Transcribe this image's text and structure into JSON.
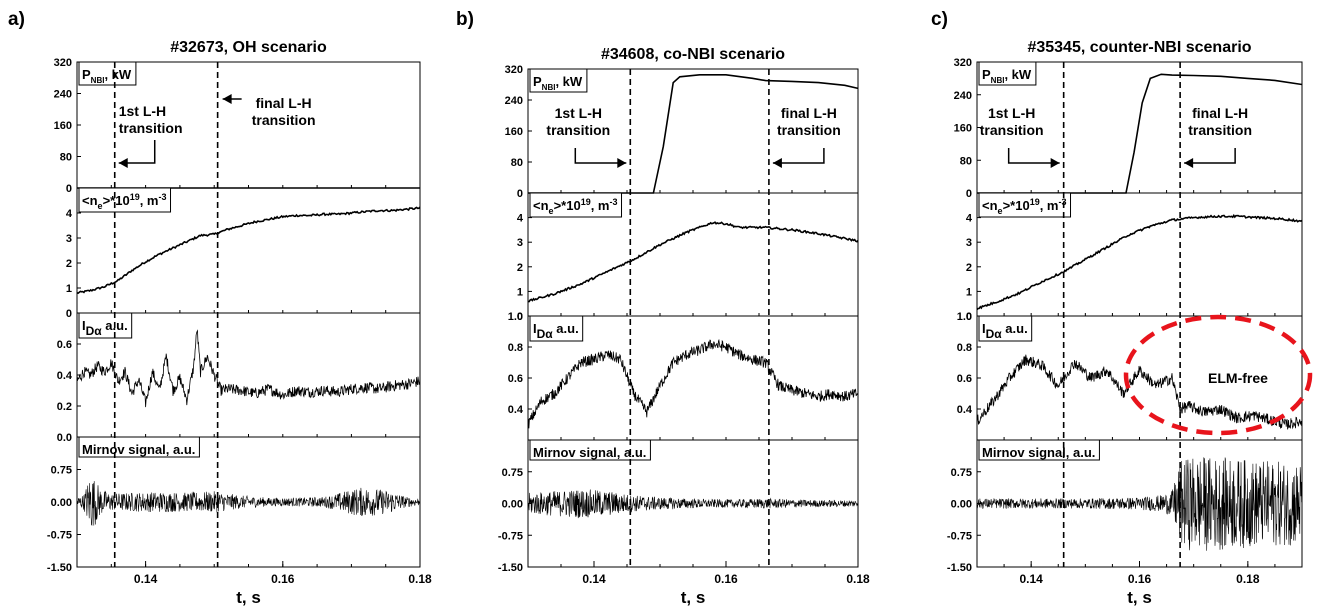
{
  "chart_data": [
    {
      "type": "line",
      "panel_label": "a)",
      "title": "#32673, OH scenario",
      "xlabel": "t, s",
      "xlim": [
        0.13,
        0.18
      ],
      "xticks": [
        "0.14",
        "0.16",
        "0.18"
      ],
      "transitions": [
        {
          "t": 0.1355,
          "label": "1st L-H transition",
          "lines": [
            "1st L-H",
            "transition"
          ],
          "arrow": "left"
        },
        {
          "t": 0.1505,
          "label": "final L-H transition",
          "lines": [
            "final L-H",
            "transition"
          ],
          "arrow": "left"
        }
      ],
      "subplots": [
        {
          "ylabel": "P_NBI, kW",
          "ylim": [
            0,
            320
          ],
          "yticks": [
            "0",
            "80",
            "160",
            "240",
            "320"
          ],
          "series": {
            "name": "P_NBI",
            "x": [
              0.13,
              0.18
            ],
            "y": [
              0,
              0
            ]
          }
        },
        {
          "ylabel": "<n_e>*10^19, m^-3",
          "ylim": [
            0,
            5
          ],
          "yticks": [
            "0",
            "1",
            "2",
            "3",
            "4"
          ],
          "series": {
            "name": "ne",
            "x": [
              0.13,
              0.132,
              0.134,
              0.136,
              0.138,
              0.14,
              0.142,
              0.144,
              0.146,
              0.148,
              0.15,
              0.152,
              0.154,
              0.156,
              0.158,
              0.16,
              0.162,
              0.164,
              0.166,
              0.168,
              0.17,
              0.172,
              0.174,
              0.176,
              0.178,
              0.18
            ],
            "y": [
              0.8,
              0.9,
              1.05,
              1.3,
              1.7,
              2.05,
              2.35,
              2.6,
              2.85,
              3.1,
              3.15,
              3.35,
              3.5,
              3.65,
              3.75,
              3.85,
              3.9,
              3.9,
              3.95,
              3.95,
              4.0,
              4.05,
              4.1,
              4.1,
              4.15,
              4.2
            ]
          }
        },
        {
          "ylabel": "I_Dα, a.u.",
          "ylim": [
            0,
            0.8
          ],
          "yticks": [
            "0.0",
            "0.2",
            "0.4",
            "0.6"
          ],
          "series": {
            "name": "Dalpha",
            "x": [
              0.13,
              0.131,
              0.132,
              0.133,
              0.134,
              0.135,
              0.136,
              0.137,
              0.138,
              0.139,
              0.14,
              0.141,
              0.142,
              0.143,
              0.144,
              0.145,
              0.146,
              0.147,
              0.1475,
              0.148,
              0.149,
              0.15,
              0.151,
              0.152,
              0.154,
              0.156,
              0.158,
              0.16,
              0.162,
              0.164,
              0.166,
              0.168,
              0.17,
              0.172,
              0.174,
              0.176,
              0.178,
              0.18
            ],
            "y": [
              0.36,
              0.42,
              0.4,
              0.46,
              0.42,
              0.48,
              0.36,
              0.42,
              0.28,
              0.37,
              0.22,
              0.42,
              0.3,
              0.52,
              0.3,
              0.38,
              0.24,
              0.45,
              0.7,
              0.42,
              0.52,
              0.4,
              0.3,
              0.31,
              0.3,
              0.28,
              0.31,
              0.27,
              0.3,
              0.29,
              0.3,
              0.29,
              0.31,
              0.32,
              0.31,
              0.33,
              0.34,
              0.36
            ]
          }
        },
        {
          "ylabel": "Mirnov signal, a.u.",
          "ylim": [
            -1.5,
            1.5
          ],
          "yticks": [
            "-1.50",
            "-0.75",
            "0.00",
            "0.75"
          ],
          "series": {
            "name": "Mirnov",
            "x": [
              0.13,
              0.131,
              0.132,
              0.1335,
              0.135,
              0.138,
              0.142,
              0.146,
              0.15,
              0.154,
              0.158,
              0.162,
              0.166,
              0.168,
              0.17,
              0.172,
              0.174,
              0.176,
              0.178,
              0.18
            ],
            "amplitude": [
              0.12,
              0.18,
              0.7,
              0.3,
              0.2,
              0.22,
              0.24,
              0.22,
              0.25,
              0.15,
              0.1,
              0.1,
              0.12,
              0.2,
              0.3,
              0.35,
              0.3,
              0.25,
              0.12,
              0.08
            ]
          }
        }
      ]
    },
    {
      "type": "line",
      "panel_label": "b)",
      "title": "#34608, co-NBI scenario",
      "xlabel": "t, s",
      "xlim": [
        0.13,
        0.18
      ],
      "xticks": [
        "0.14",
        "0.16",
        "0.18"
      ],
      "transitions": [
        {
          "t": 0.1455,
          "label": "1st L-H transition",
          "lines": [
            "1st L-H",
            "transition"
          ],
          "arrow": "right"
        },
        {
          "t": 0.1665,
          "label": "final L-H transition",
          "lines": [
            "final L-H",
            "transition"
          ],
          "arrow": "left"
        }
      ],
      "subplots": [
        {
          "ylabel": "P_NBI, kW",
          "ylim": [
            0,
            320
          ],
          "yticks": [
            "0",
            "80",
            "160",
            "240",
            "320"
          ],
          "series": {
            "name": "P_NBI",
            "x": [
              0.13,
              0.149,
              0.1505,
              0.152,
              0.153,
              0.156,
              0.16,
              0.164,
              0.166,
              0.17,
              0.174,
              0.178,
              0.18
            ],
            "y": [
              0,
              0,
              120,
              285,
              300,
              305,
              305,
              296,
              290,
              288,
              285,
              278,
              270
            ]
          }
        },
        {
          "ylabel": "<n_e>*10^19, m^-3",
          "ylim": [
            0,
            5
          ],
          "yticks": [
            "0",
            "1",
            "2",
            "3",
            "4"
          ],
          "series": {
            "name": "ne",
            "x": [
              0.13,
              0.134,
              0.138,
              0.142,
              0.146,
              0.15,
              0.154,
              0.158,
              0.16,
              0.162,
              0.166,
              0.17,
              0.174,
              0.178,
              0.18
            ],
            "y": [
              0.6,
              0.9,
              1.3,
              1.8,
              2.3,
              2.9,
              3.4,
              3.8,
              3.75,
              3.6,
              3.6,
              3.5,
              3.35,
              3.15,
              3.05
            ]
          }
        },
        {
          "ylabel": "I_Dα, a.u.",
          "ylim": [
            0.2,
            1.0
          ],
          "yticks": [
            "0.4",
            "0.6",
            "0.8",
            "1.0"
          ],
          "series": {
            "name": "Dalpha",
            "x": [
              0.13,
              0.132,
              0.134,
              0.136,
              0.138,
              0.14,
              0.142,
              0.144,
              0.146,
              0.148,
              0.15,
              0.152,
              0.154,
              0.156,
              0.158,
              0.16,
              0.162,
              0.164,
              0.166,
              0.168,
              0.17,
              0.172,
              0.174,
              0.176,
              0.178,
              0.18
            ],
            "y": [
              0.3,
              0.45,
              0.5,
              0.6,
              0.7,
              0.72,
              0.75,
              0.72,
              0.5,
              0.38,
              0.55,
              0.7,
              0.75,
              0.78,
              0.82,
              0.8,
              0.75,
              0.72,
              0.7,
              0.55,
              0.52,
              0.5,
              0.48,
              0.5,
              0.48,
              0.5
            ]
          }
        },
        {
          "ylabel": "Mirnov signal, a.u.",
          "ylim": [
            -1.5,
            1.5
          ],
          "yticks": [
            "-1.50",
            "-0.75",
            "0.00",
            "0.75"
          ],
          "series": {
            "name": "Mirnov",
            "x": [
              0.13,
              0.134,
              0.138,
              0.142,
              0.146,
              0.15,
              0.154,
              0.158,
              0.162,
              0.166,
              0.17,
              0.174,
              0.178,
              0.18
            ],
            "amplitude": [
              0.25,
              0.3,
              0.35,
              0.3,
              0.2,
              0.15,
              0.12,
              0.1,
              0.1,
              0.12,
              0.1,
              0.08,
              0.08,
              0.08
            ]
          }
        }
      ]
    },
    {
      "type": "line",
      "panel_label": "c)",
      "title": "#35345, counter-NBI scenario",
      "xlabel": "t, s",
      "xlim": [
        0.13,
        0.19
      ],
      "xticks": [
        "0.14",
        "0.16",
        "0.18"
      ],
      "annotation": "ELM-free",
      "transitions": [
        {
          "t": 0.146,
          "label": "1st L-H transition",
          "lines": [
            "1st L-H",
            "transition"
          ],
          "arrow": "right"
        },
        {
          "t": 0.1675,
          "label": "final L-H transition",
          "lines": [
            "final L-H",
            "transition"
          ],
          "arrow": "left"
        }
      ],
      "subplots": [
        {
          "ylabel": "P_NBI, kW",
          "ylim": [
            0,
            320
          ],
          "yticks": [
            "0",
            "80",
            "160",
            "240",
            "320"
          ],
          "series": {
            "name": "P_NBI",
            "x": [
              0.13,
              0.1575,
              0.159,
              0.1605,
              0.162,
              0.164,
              0.166,
              0.17,
              0.175,
              0.18,
              0.185,
              0.19
            ],
            "y": [
              0,
              0,
              100,
              220,
              280,
              290,
              288,
              287,
              285,
              280,
              275,
              265
            ]
          }
        },
        {
          "ylabel": "<n_e>*10^19, m^-3",
          "ylim": [
            0,
            5
          ],
          "yticks": [
            "0",
            "1",
            "2",
            "3",
            "4"
          ],
          "series": {
            "name": "ne",
            "x": [
              0.13,
              0.134,
              0.138,
              0.142,
              0.146,
              0.15,
              0.154,
              0.158,
              0.162,
              0.166,
              0.17,
              0.174,
              0.178,
              0.182,
              0.186,
              0.19
            ],
            "y": [
              0.3,
              0.6,
              0.95,
              1.4,
              1.8,
              2.3,
              2.8,
              3.3,
              3.65,
              3.9,
              4.0,
              4.05,
              4.05,
              4.0,
              3.95,
              3.85
            ]
          }
        },
        {
          "ylabel": "I_Dα, a.u.",
          "ylim": [
            0.2,
            1.0
          ],
          "yticks": [
            "0.4",
            "0.6",
            "0.8",
            "1.0"
          ],
          "series": {
            "name": "Dalpha",
            "x": [
              0.13,
              0.133,
              0.136,
              0.139,
              0.142,
              0.145,
              0.148,
              0.151,
              0.154,
              0.157,
              0.16,
              0.163,
              0.166,
              0.1675,
              0.169,
              0.172,
              0.175,
              0.178,
              0.181,
              0.184,
              0.187,
              0.19
            ],
            "y": [
              0.32,
              0.45,
              0.6,
              0.72,
              0.68,
              0.55,
              0.7,
              0.6,
              0.65,
              0.5,
              0.65,
              0.55,
              0.6,
              0.4,
              0.42,
              0.38,
              0.4,
              0.34,
              0.36,
              0.33,
              0.3,
              0.32
            ]
          }
        },
        {
          "ylabel": "Mirnov signal, a.u.",
          "ylim": [
            -1.5,
            1.5
          ],
          "yticks": [
            "-1.50",
            "-0.75",
            "0.00",
            "0.75"
          ],
          "series": {
            "name": "Mirnov",
            "x": [
              0.13,
              0.14,
              0.15,
              0.16,
              0.164,
              0.166,
              0.1675,
              0.17,
              0.175,
              0.18,
              0.185,
              0.19
            ],
            "amplitude": [
              0.12,
              0.12,
              0.12,
              0.15,
              0.2,
              0.3,
              1.0,
              1.15,
              1.1,
              1.05,
              1.0,
              1.0
            ]
          }
        }
      ]
    }
  ]
}
